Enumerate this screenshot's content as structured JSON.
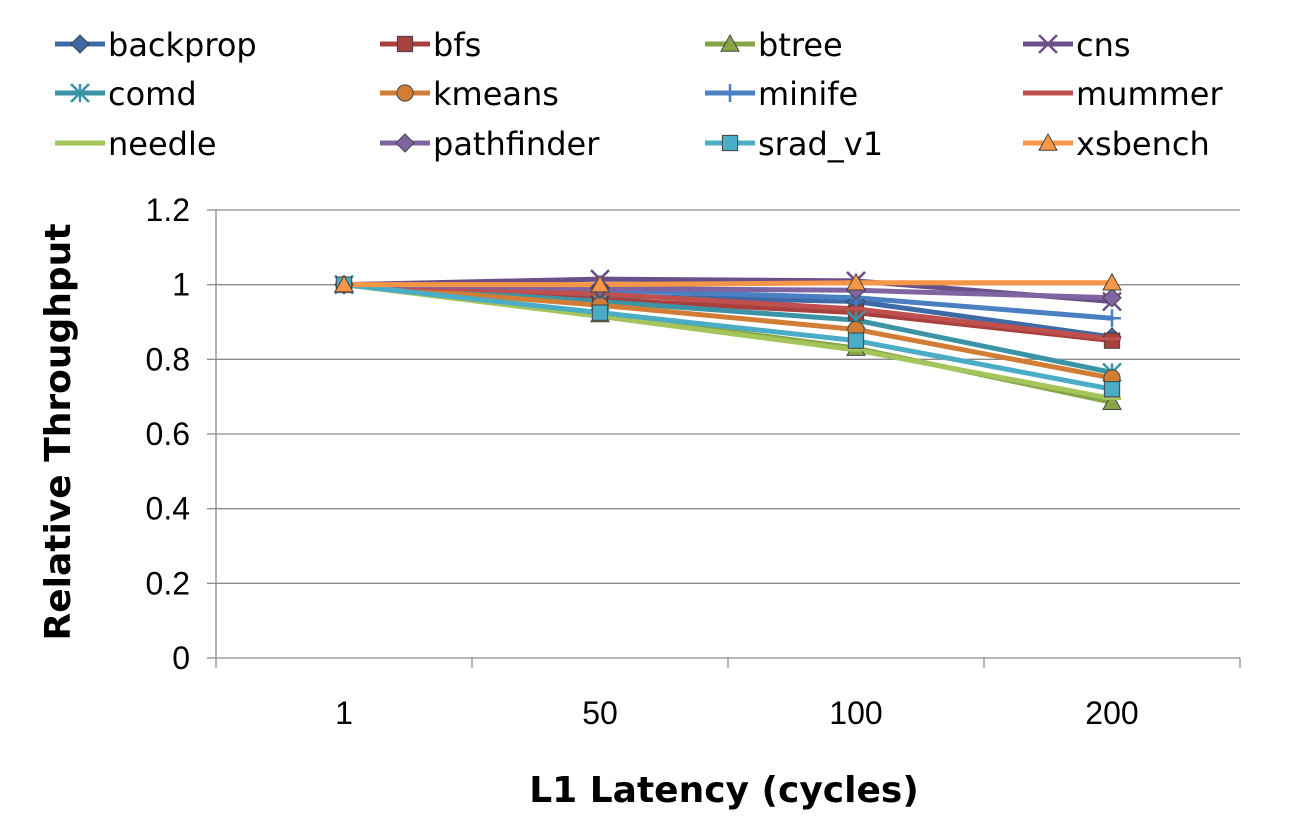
{
  "chart_data": {
    "type": "line",
    "title": "",
    "xlabel": "L1 Latency (cycles)",
    "ylabel": "Relative Throughput",
    "categories": [
      "1",
      "50",
      "100",
      "200"
    ],
    "ylim": [
      0,
      1.2
    ],
    "yticks": [
      "0",
      "0.2",
      "0.4",
      "0.6",
      "0.8",
      "1",
      "1.2"
    ],
    "grid": true,
    "legend_position": "top",
    "series": [
      {
        "name": "backprop",
        "color": "#3f6aa8",
        "marker": "diamond",
        "values": [
          1.0,
          0.97,
          0.955,
          0.86
        ]
      },
      {
        "name": "bfs",
        "color": "#a8403d",
        "marker": "square",
        "values": [
          1.0,
          0.96,
          0.925,
          0.85
        ]
      },
      {
        "name": "btree",
        "color": "#86a544",
        "marker": "triangle",
        "values": [
          1.0,
          0.92,
          0.83,
          0.685
        ]
      },
      {
        "name": "cns",
        "color": "#6b4f8a",
        "marker": "x",
        "values": [
          1.0,
          1.015,
          1.01,
          0.955
        ]
      },
      {
        "name": "comd",
        "color": "#3b94a6",
        "marker": "star",
        "values": [
          1.0,
          0.955,
          0.905,
          0.765
        ]
      },
      {
        "name": "kmeans",
        "color": "#d27d36",
        "marker": "circle",
        "values": [
          1.0,
          0.945,
          0.88,
          0.75
        ]
      },
      {
        "name": "minife",
        "color": "#4a7fc1",
        "marker": "plus",
        "values": [
          1.0,
          0.985,
          0.965,
          0.91
        ]
      },
      {
        "name": "mummer",
        "color": "#c0504d",
        "marker": "dash",
        "values": [
          1.0,
          0.975,
          0.935,
          0.855
        ]
      },
      {
        "name": "needle",
        "color": "#a4c55b",
        "marker": "dash",
        "values": [
          1.0,
          0.915,
          0.825,
          0.695
        ]
      },
      {
        "name": "pathfinder",
        "color": "#8064a2",
        "marker": "diamond",
        "values": [
          1.0,
          0.99,
          0.985,
          0.965
        ]
      },
      {
        "name": "srad_v1",
        "color": "#4bacc6",
        "marker": "square",
        "values": [
          1.0,
          0.925,
          0.85,
          0.72
        ]
      },
      {
        "name": "xsbench",
        "color": "#f79646",
        "marker": "triangle",
        "values": [
          1.0,
          1.0,
          1.005,
          1.005
        ]
      }
    ]
  }
}
